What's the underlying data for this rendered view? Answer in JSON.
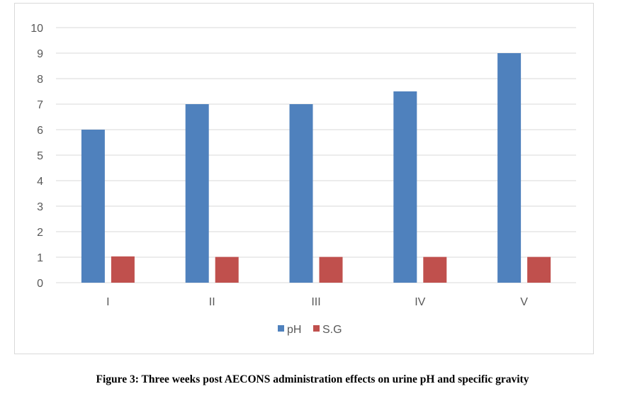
{
  "caption": "Figure 3: Three weeks post AECONS administration effects on urine pH and specific gravity",
  "colors": {
    "ph": "#4f81bd",
    "sg": "#c0504d",
    "grid": "#d9d9d9",
    "axis": "#d9d9d9",
    "text": "#595959"
  },
  "chart_data": {
    "type": "bar",
    "title": "",
    "xlabel": "",
    "ylabel": "",
    "categories": [
      "I",
      "II",
      "III",
      "IV",
      "V"
    ],
    "series": [
      {
        "name": "pH",
        "values": [
          6,
          7,
          7,
          7.5,
          9
        ]
      },
      {
        "name": "S.G",
        "values": [
          1.03,
          1.01,
          1.01,
          1.01,
          1.01
        ]
      }
    ],
    "ylim": [
      0,
      10
    ],
    "yticks": [
      0,
      1,
      2,
      3,
      4,
      5,
      6,
      7,
      8,
      9,
      10
    ],
    "grid": true,
    "legend": "bottom"
  }
}
